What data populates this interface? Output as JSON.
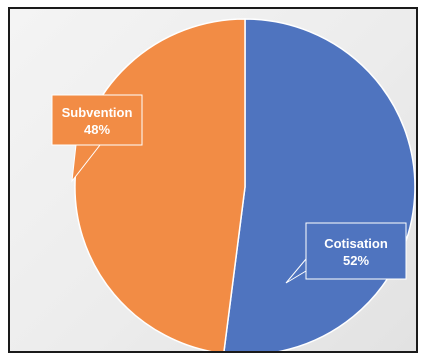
{
  "chart_data": {
    "type": "pie",
    "title": "",
    "slices": [
      {
        "label": "Cotisation",
        "value": 52,
        "display": "52%",
        "color": "#4f74bf"
      },
      {
        "label": "Subvention",
        "value": 48,
        "display": "48%",
        "color": "#f28c45"
      }
    ],
    "legend": "none",
    "data_labels": "callouts"
  },
  "colors": {
    "background": "#ececec",
    "border": "#1a1a1a",
    "slice_edge": "#ffffff"
  }
}
